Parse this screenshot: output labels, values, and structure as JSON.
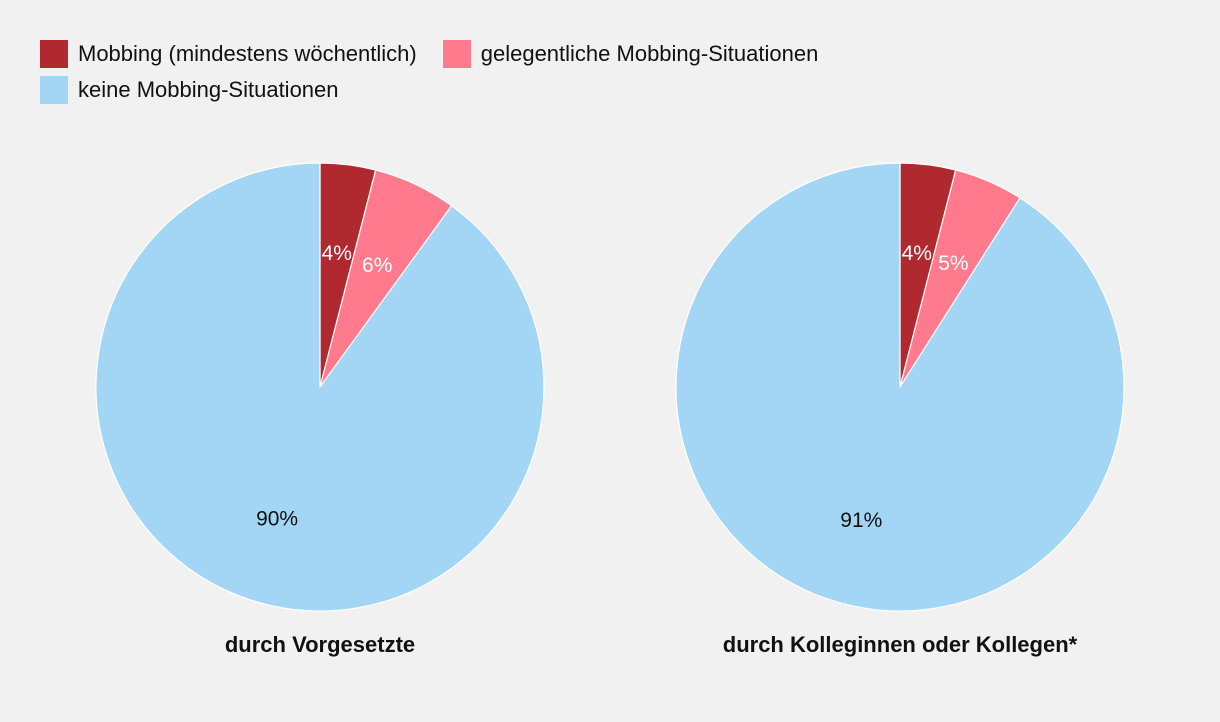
{
  "legend": {
    "items": [
      {
        "label": "Mobbing (mindestens wöchentlich)",
        "color": "#b0292e"
      },
      {
        "label": "gelegentliche Mobbing-Situationen",
        "color": "#ff7a8c"
      },
      {
        "label": "keine Mobbing-Situationen",
        "color": "#a3d5f5"
      }
    ]
  },
  "chart_data": [
    {
      "type": "pie",
      "title": "durch Vorgesetzte",
      "categories": [
        "Mobbing (mindestens wöchentlich)",
        "gelegentliche Mobbing-Situationen",
        "keine Mobbing-Situationen"
      ],
      "values": [
        4,
        6,
        90
      ],
      "labels": [
        "4%",
        "6%",
        "90%"
      ],
      "colors": [
        "#b0292e",
        "#ff7a8c",
        "#a3d5f5"
      ],
      "label_colors": [
        "#ffffff",
        "#ffffff",
        "#111111"
      ]
    },
    {
      "type": "pie",
      "title": "durch Kolleginnen oder Kollegen*",
      "categories": [
        "Mobbing (mindestens wöchentlich)",
        "gelegentliche Mobbing-Situationen",
        "keine Mobbing-Situationen"
      ],
      "values": [
        4,
        5,
        91
      ],
      "labels": [
        "4%",
        "5%",
        "91%"
      ],
      "colors": [
        "#b0292e",
        "#ff7a8c",
        "#a3d5f5"
      ],
      "label_colors": [
        "#ffffff",
        "#ffffff",
        "#111111"
      ]
    }
  ]
}
